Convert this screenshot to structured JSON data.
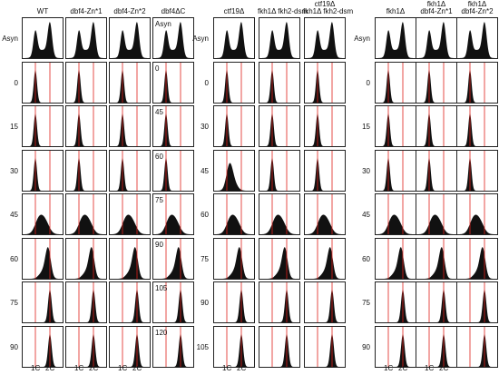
{
  "panels": [
    {
      "id": "left",
      "columns": [
        {
          "label": "WT",
          "profiles": [
            "asyn",
            "g1",
            "g1",
            "g1",
            "mid",
            "late",
            "g2",
            "g2"
          ]
        },
        {
          "label": "dbf4-Zn*1",
          "profiles": [
            "asyn",
            "g1",
            "g1",
            "g1",
            "mid",
            "late",
            "g2",
            "g2"
          ]
        },
        {
          "label": "dbf4-Zn*2",
          "profiles": [
            "asyn",
            "g1",
            "g1",
            "g1",
            "mid",
            "late",
            "g2",
            "g2"
          ]
        },
        {
          "label": "dbf4ΔC",
          "profiles": [
            "asyn",
            "g1",
            "g1",
            "g1",
            "mid",
            "late",
            "g2",
            "g2"
          ],
          "times": [
            "Asyn",
            "0",
            "45",
            "60",
            "75",
            "90",
            "105",
            "120"
          ]
        }
      ],
      "rows": [
        "Asyn",
        "0",
        "15",
        "30",
        "45",
        "60",
        "75",
        "90"
      ],
      "axis": [
        "1C",
        "2C",
        "1C",
        "2C",
        "1C",
        "2C"
      ]
    },
    {
      "id": "middle",
      "columns": [
        {
          "label": "ctf19Δ",
          "profiles": [
            "asyn",
            "g1",
            "g1",
            "early",
            "mid",
            "late",
            "g2",
            "g2"
          ]
        },
        {
          "label": "fkh1Δ fkh2-dsm",
          "profiles": [
            "asyn",
            "g1",
            "g1",
            "g1",
            "mid",
            "late",
            "g2",
            "g2"
          ]
        },
        {
          "label": "ctf19Δ\nfkh1Δ fkh2-dsm",
          "profiles": [
            "asyn",
            "g1",
            "g1",
            "g1",
            "mid",
            "late",
            "g2",
            "g2"
          ]
        }
      ],
      "rows": [
        "Asyn",
        "0",
        "30",
        "45",
        "60",
        "75",
        "90",
        "105"
      ],
      "axis": [
        "1C",
        "2C"
      ]
    },
    {
      "id": "right",
      "columns": [
        {
          "label": "fkh1Δ",
          "profiles": [
            "asyn",
            "g1",
            "g1",
            "g1",
            "mid",
            "late",
            "g2",
            "g2"
          ]
        },
        {
          "label": "fkh1Δ\ndbf4-Zn*1",
          "profiles": [
            "asyn",
            "g1",
            "g1",
            "g1",
            "mid",
            "late",
            "g2",
            "g2"
          ]
        },
        {
          "label": "fkh1Δ\ndbf4-Zn*2",
          "profiles": [
            "asyn",
            "g1",
            "g1",
            "g1",
            "mid",
            "late",
            "g2",
            "g2"
          ]
        }
      ],
      "rows": [
        "Asyn",
        "0",
        "15",
        "30",
        "45",
        "60",
        "75",
        "90"
      ],
      "axis": [
        "1C",
        "2C",
        "1C",
        "2C"
      ]
    }
  ],
  "style": {
    "fill": "#111111",
    "marker_line": "#e0201a"
  }
}
